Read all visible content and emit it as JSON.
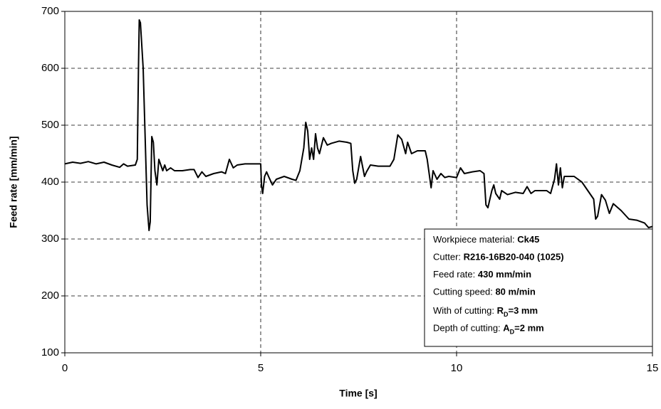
{
  "chart_data": {
    "type": "line",
    "xlabel": "Time [s]",
    "ylabel": "Feed rate [mm/min]",
    "color": "#000000",
    "grid": true,
    "xlim": [
      0,
      15
    ],
    "xticks": [
      0,
      5,
      10,
      15
    ],
    "ylim": [
      100,
      700
    ],
    "yticks": [
      100,
      200,
      300,
      400,
      500,
      600,
      700
    ],
    "x": [
      0,
      0.2,
      0.4,
      0.6,
      0.8,
      1.0,
      1.2,
      1.4,
      1.5,
      1.6,
      1.8,
      1.85,
      1.88,
      1.9,
      1.93,
      2.0,
      2.05,
      2.1,
      2.15,
      2.18,
      2.22,
      2.26,
      2.3,
      2.35,
      2.4,
      2.45,
      2.5,
      2.55,
      2.6,
      2.7,
      2.8,
      3.0,
      3.2,
      3.3,
      3.4,
      3.5,
      3.6,
      3.8,
      4.0,
      4.1,
      4.2,
      4.3,
      4.4,
      4.6,
      5.0,
      5.02,
      5.05,
      5.1,
      5.15,
      5.2,
      5.3,
      5.4,
      5.6,
      5.8,
      5.9,
      6.0,
      6.1,
      6.15,
      6.2,
      6.25,
      6.3,
      6.35,
      6.4,
      6.45,
      6.5,
      6.6,
      6.7,
      6.8,
      7.0,
      7.2,
      7.3,
      7.35,
      7.4,
      7.45,
      7.55,
      7.65,
      7.7,
      7.8,
      8.0,
      8.3,
      8.4,
      8.5,
      8.6,
      8.7,
      8.75,
      8.85,
      9.0,
      9.2,
      9.25,
      9.3,
      9.35,
      9.4,
      9.5,
      9.6,
      9.7,
      9.8,
      10.0,
      10.1,
      10.2,
      10.4,
      10.6,
      10.7,
      10.75,
      10.8,
      10.9,
      10.95,
      11.0,
      11.1,
      11.15,
      11.3,
      11.5,
      11.7,
      11.8,
      11.9,
      12.0,
      12.3,
      12.4,
      12.5,
      12.55,
      12.6,
      12.65,
      12.7,
      12.75,
      13.0,
      13.2,
      13.4,
      13.5,
      13.55,
      13.6,
      13.7,
      13.8,
      13.9,
      14.0,
      14.2,
      14.4,
      14.6,
      14.8,
      14.9,
      15.0
    ],
    "values": [
      432,
      435,
      433,
      436,
      432,
      435,
      430,
      426,
      432,
      428,
      430,
      440,
      600,
      685,
      680,
      600,
      480,
      360,
      315,
      330,
      480,
      470,
      420,
      395,
      440,
      430,
      420,
      430,
      420,
      425,
      420,
      420,
      422,
      422,
      408,
      418,
      410,
      415,
      418,
      415,
      440,
      425,
      430,
      432,
      432,
      395,
      380,
      410,
      418,
      410,
      395,
      405,
      410,
      405,
      403,
      420,
      460,
      505,
      490,
      440,
      460,
      440,
      485,
      460,
      450,
      478,
      465,
      468,
      472,
      470,
      468,
      420,
      398,
      405,
      445,
      410,
      418,
      430,
      428,
      428,
      440,
      483,
      475,
      450,
      470,
      450,
      455,
      455,
      440,
      415,
      390,
      420,
      405,
      415,
      408,
      410,
      408,
      425,
      415,
      418,
      420,
      415,
      360,
      355,
      385,
      395,
      380,
      370,
      385,
      378,
      382,
      380,
      392,
      380,
      385,
      385,
      380,
      405,
      432,
      395,
      425,
      390,
      410,
      410,
      400,
      380,
      370,
      335,
      340,
      378,
      368,
      345,
      362,
      350,
      335,
      333,
      328,
      320,
      322
    ],
    "annotations": [
      {
        "label": "Workpiece material:",
        "value": [
          {
            "text": "Ck45"
          }
        ]
      },
      {
        "label": "Cutter:",
        "value": [
          {
            "text": "R216-16B20-040 (1025)"
          }
        ]
      },
      {
        "label": "Feed rate:",
        "value": [
          {
            "text": "430 mm/min"
          }
        ]
      },
      {
        "label": "Cutting speed:",
        "value": [
          {
            "text": "80 m/min"
          }
        ]
      },
      {
        "label": "With of cutting:",
        "value": [
          {
            "text": "R"
          },
          {
            "text": "D",
            "sub": true
          },
          {
            "text": "=3 mm"
          }
        ]
      },
      {
        "label": "Depth of cutting:",
        "value": [
          {
            "text": "A"
          },
          {
            "text": "D",
            "sub": true
          },
          {
            "text": "=2 mm"
          }
        ]
      }
    ]
  }
}
